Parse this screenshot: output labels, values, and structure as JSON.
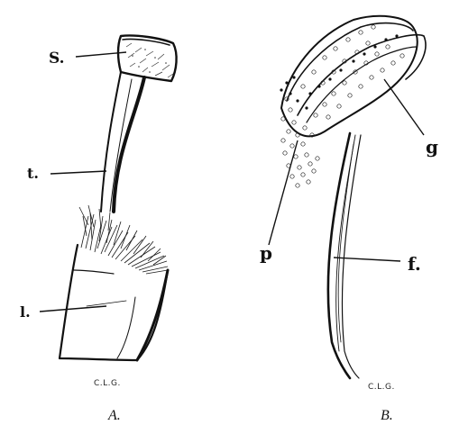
{
  "figure_a": {
    "labels": {
      "s": "S.",
      "t": "t.",
      "l": "l."
    },
    "signature": "C.L.G.",
    "caption": "A."
  },
  "figure_b": {
    "labels": {
      "g": "g",
      "p": "p",
      "f": "f."
    },
    "signature": "C.L.G.",
    "caption": "B."
  }
}
